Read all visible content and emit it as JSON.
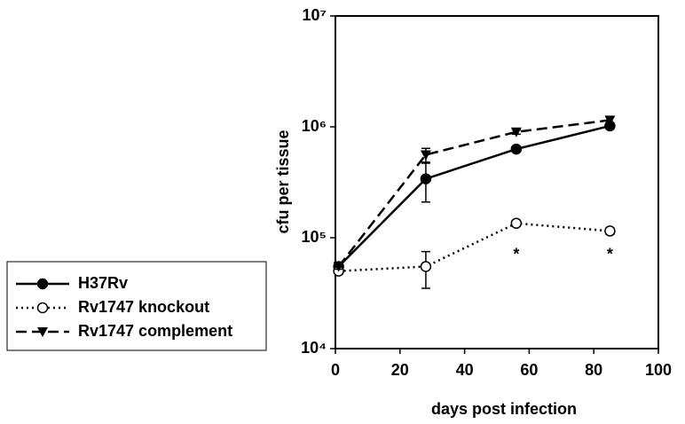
{
  "chart_data": {
    "type": "line",
    "xlabel": "days post infection",
    "ylabel": "cfu per tissue",
    "xlim": [
      0,
      100
    ],
    "xticks": [
      0,
      20,
      40,
      60,
      80,
      100
    ],
    "ylim": [
      10000,
      10000000
    ],
    "log_y": true,
    "yticks": [
      {
        "value": 10000,
        "label": "10⁴"
      },
      {
        "value": 100000,
        "label": "10⁵"
      },
      {
        "value": 1000000,
        "label": "10⁶"
      },
      {
        "value": 10000000,
        "label": "10⁷"
      }
    ],
    "legend": "left",
    "series": [
      {
        "name": "H37Rv",
        "color": "#000000",
        "dash": "solid",
        "marker": "filled-circle",
        "x": [
          1,
          28,
          56,
          85
        ],
        "values": [
          55000,
          340000,
          630000,
          1020000
        ],
        "errors": [
          5000,
          130000,
          30000,
          60000
        ]
      },
      {
        "name": "Rv1747 knockout",
        "color": "#000000",
        "dash": "dotted",
        "marker": "open-circle",
        "x": [
          1,
          28,
          56,
          85
        ],
        "values": [
          50000,
          55000,
          135000,
          115000
        ],
        "errors": [
          3000,
          20000,
          8000,
          8000
        ]
      },
      {
        "name": "Rv1747 complement",
        "color": "#000000",
        "dash": "dashed",
        "marker": "down-triangle",
        "x": [
          1,
          28,
          56,
          85
        ],
        "values": [
          55000,
          560000,
          900000,
          1150000
        ],
        "errors": [
          3000,
          80000,
          40000,
          80000
        ]
      }
    ],
    "annotations": [
      {
        "text": "*",
        "x": 56,
        "y": 75000
      },
      {
        "text": "*",
        "x": 85,
        "y": 75000
      }
    ]
  }
}
